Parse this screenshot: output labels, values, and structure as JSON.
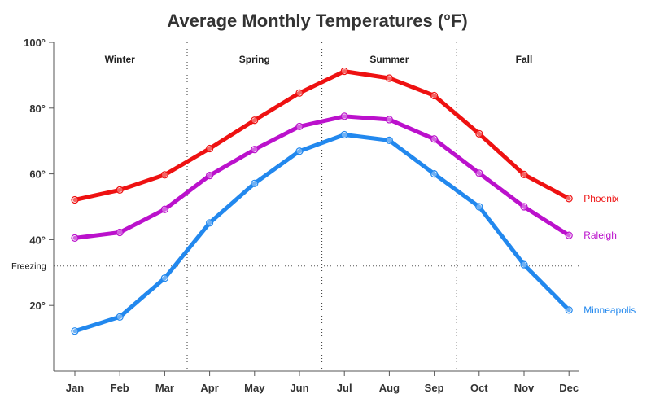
{
  "chart_data": {
    "type": "line",
    "title": "Average Monthly Temperatures (°F)",
    "xlabel": "",
    "ylabel": "",
    "categories": [
      "Jan",
      "Feb",
      "Mar",
      "Apr",
      "May",
      "Jun",
      "Jul",
      "Aug",
      "Sep",
      "Oct",
      "Nov",
      "Dec"
    ],
    "ylim": [
      0,
      100
    ],
    "yticks": [
      {
        "value": 20,
        "label": "20°"
      },
      {
        "value": 40,
        "label": "40°"
      },
      {
        "value": 60,
        "label": "60°"
      },
      {
        "value": 80,
        "label": "80°"
      },
      {
        "value": 100,
        "label": "100°"
      }
    ],
    "grid": false,
    "legend": "inline labels at right end of each line",
    "seasons": [
      {
        "label": "Winter",
        "start": 0,
        "end": 2
      },
      {
        "label": "Spring",
        "start": 3,
        "end": 5
      },
      {
        "label": "Summer",
        "start": 6,
        "end": 8
      },
      {
        "label": "Fall",
        "start": 9,
        "end": 11
      }
    ],
    "reference_line": {
      "label": "Freezing",
      "value": 32
    },
    "series": [
      {
        "name": "Phoenix",
        "color": "#ee1111",
        "values": [
          52.1,
          55.1,
          59.7,
          67.7,
          76.3,
          84.6,
          91.2,
          89.1,
          83.8,
          72.2,
          59.8,
          52.5
        ]
      },
      {
        "name": "Raleigh",
        "color": "#bb11cc",
        "values": [
          40.5,
          42.2,
          49.2,
          59.5,
          67.4,
          74.4,
          77.5,
          76.5,
          70.6,
          60.2,
          50.0,
          41.3
        ]
      },
      {
        "name": "Minneapolis",
        "color": "#2288ee",
        "values": [
          12.2,
          16.5,
          28.3,
          45.1,
          57.1,
          66.9,
          71.9,
          70.2,
          60.0,
          50.0,
          32.4,
          18.6
        ]
      }
    ]
  }
}
